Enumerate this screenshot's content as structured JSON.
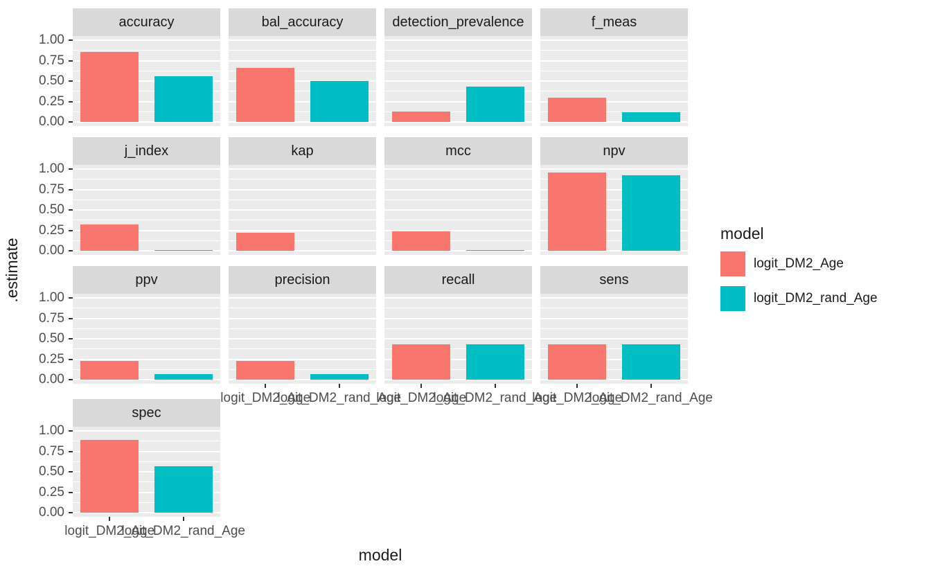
{
  "chart_data": {
    "type": "bar",
    "title": "",
    "xlabel": "model",
    "ylabel": ".estimate",
    "categories": [
      "logit_DM2_Age",
      "logit_DM2_rand_Age"
    ],
    "series_colors": [
      "#F8766D",
      "#00BFC4"
    ],
    "y_ticks": [
      0,
      0.25,
      0.5,
      0.75,
      1
    ],
    "y_tick_labels": [
      "0.00",
      "0.25",
      "0.50",
      "0.75",
      "1.00"
    ],
    "y_minor_ticks": [
      0.125,
      0.375,
      0.625,
      0.875
    ],
    "ylim": [
      0,
      1.05
    ],
    "grid": true,
    "facet_layout": {
      "ncol": 4,
      "nrow": 4
    },
    "legend": {
      "title": "model",
      "position": "right",
      "entries": [
        {
          "label": "logit_DM2_Age",
          "color": "#F8766D"
        },
        {
          "label": "logit_DM2_rand_Age",
          "color": "#00BFC4"
        }
      ]
    },
    "facets": [
      {
        "name": "accuracy",
        "values": [
          0.86,
          0.56
        ]
      },
      {
        "name": "bal_accuracy",
        "values": [
          0.66,
          0.5
        ]
      },
      {
        "name": "detection_prevalence",
        "values": [
          0.13,
          0.43
        ]
      },
      {
        "name": "f_meas",
        "values": [
          0.3,
          0.12
        ]
      },
      {
        "name": "j_index",
        "values": [
          0.32,
          0.01
        ]
      },
      {
        "name": "kap",
        "values": [
          0.22,
          0.0
        ]
      },
      {
        "name": "mcc",
        "values": [
          0.24,
          0.01
        ]
      },
      {
        "name": "npv",
        "values": [
          0.96,
          0.92
        ]
      },
      {
        "name": "ppv",
        "values": [
          0.23,
          0.07
        ]
      },
      {
        "name": "precision",
        "values": [
          0.23,
          0.07
        ]
      },
      {
        "name": "recall",
        "values": [
          0.43,
          0.43
        ]
      },
      {
        "name": "sens",
        "values": [
          0.43,
          0.43
        ]
      },
      {
        "name": "spec",
        "values": [
          0.89,
          0.57
        ]
      }
    ],
    "colors": {
      "panel_bg": "#EBEBEB",
      "strip_bg": "#D9D9D9",
      "gridline": "#FFFFFF",
      "axis_text": "#4D4D4D",
      "strip_text": "#1A1A1A"
    }
  }
}
